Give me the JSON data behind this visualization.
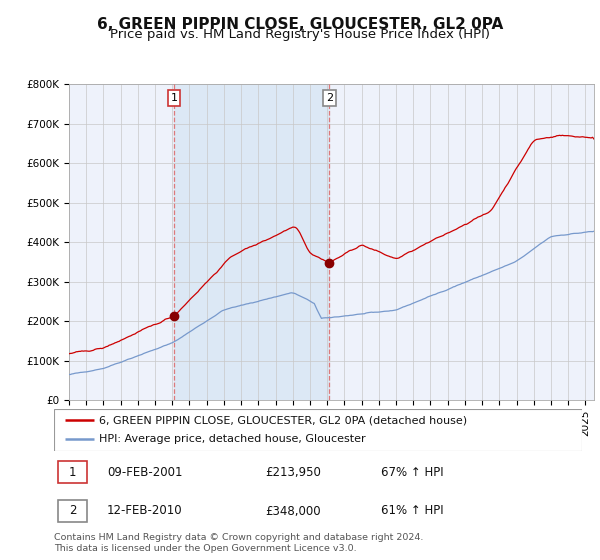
{
  "title": "6, GREEN PIPPIN CLOSE, GLOUCESTER, GL2 0PA",
  "subtitle": "Price paid vs. HM Land Registry's House Price Index (HPI)",
  "ylim": [
    0,
    800000
  ],
  "yticks": [
    0,
    100000,
    200000,
    300000,
    400000,
    500000,
    600000,
    700000,
    800000
  ],
  "ytick_labels": [
    "£0",
    "£100K",
    "£200K",
    "£300K",
    "£400K",
    "£500K",
    "£600K",
    "£700K",
    "£800K"
  ],
  "xlim_start": 1995.0,
  "xlim_end": 2025.5,
  "background_color": "#ffffff",
  "plot_bg_color": "#eef2fb",
  "grid_color": "#c8c8c8",
  "red_line_color": "#cc0000",
  "blue_line_color": "#7799cc",
  "shaded_region_color": "#dce8f5",
  "vline1_color": "#dd6666",
  "vline2_color": "#dd6666",
  "marker_color": "#880000",
  "point1_x": 2001.11,
  "point1_y": 213950,
  "point2_x": 2010.12,
  "point2_y": 348000,
  "label1_date": "09-FEB-2001",
  "label1_price": "£213,950",
  "label1_pct": "67% ↑ HPI",
  "label2_date": "12-FEB-2010",
  "label2_price": "£348,000",
  "label2_pct": "61% ↑ HPI",
  "legend_line1": "6, GREEN PIPPIN CLOSE, GLOUCESTER, GL2 0PA (detached house)",
  "legend_line2": "HPI: Average price, detached house, Gloucester",
  "footnote": "Contains HM Land Registry data © Crown copyright and database right 2024.\nThis data is licensed under the Open Government Licence v3.0.",
  "shaded_x_start": 2001.11,
  "shaded_x_end": 2010.12,
  "title_fontsize": 11,
  "subtitle_fontsize": 9.5,
  "tick_fontsize": 7.5,
  "legend_fontsize": 8,
  "footnote_fontsize": 6.8,
  "annotation_fontsize": 8
}
